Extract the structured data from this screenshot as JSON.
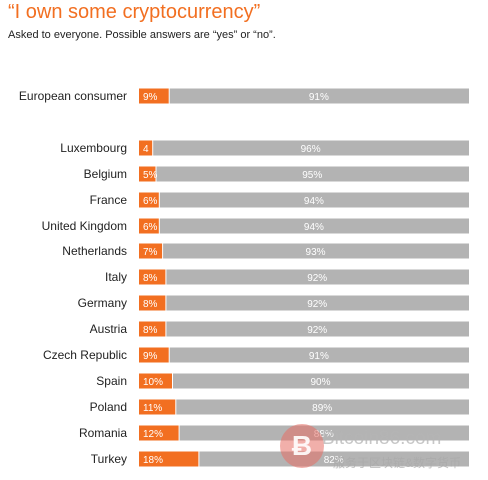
{
  "title": "“I own some cryptocurrency”",
  "subtitle": "Asked to everyone. Possible answers are “yes” or “no”.",
  "watermark": {
    "logo_glyph": "Ƀ",
    "text": "Bitcoin86.com",
    "subtext": "服务于区块链&数字货币"
  },
  "colors": {
    "yes": "#f26f21",
    "no": "#b3b3b3",
    "label_text": "#ffffff",
    "category_text": "#222222"
  },
  "chart_data": {
    "type": "bar",
    "orientation": "horizontal",
    "stacked": true,
    "categories": [
      "European consumer",
      "Luxembourg",
      "Belgium",
      "France",
      "United Kingdom",
      "Netherlands",
      "Italy",
      "Germany",
      "Austria",
      "Czech Republic",
      "Spain",
      "Poland",
      "Romania",
      "Turkey"
    ],
    "series": [
      {
        "name": "yes",
        "values": [
          9,
          4,
          5,
          6,
          6,
          7,
          8,
          8,
          8,
          9,
          10,
          11,
          12,
          18
        ],
        "labels": [
          "9%",
          "4",
          "5%",
          "6%",
          "6%",
          "7%",
          "8%",
          "8%",
          "8%",
          "9%",
          "10%",
          "11%",
          "12%",
          "18%"
        ]
      },
      {
        "name": "no",
        "values": [
          91,
          96,
          95,
          94,
          94,
          93,
          92,
          92,
          92,
          91,
          90,
          89,
          88,
          82
        ],
        "labels": [
          "91%",
          "96%",
          "95%",
          "94%",
          "94%",
          "93%",
          "92%",
          "92%",
          "92%",
          "91%",
          "90%",
          "89%",
          "88%",
          "82%"
        ]
      }
    ],
    "xlim": [
      0,
      100
    ],
    "grid": false,
    "legend": "none"
  }
}
